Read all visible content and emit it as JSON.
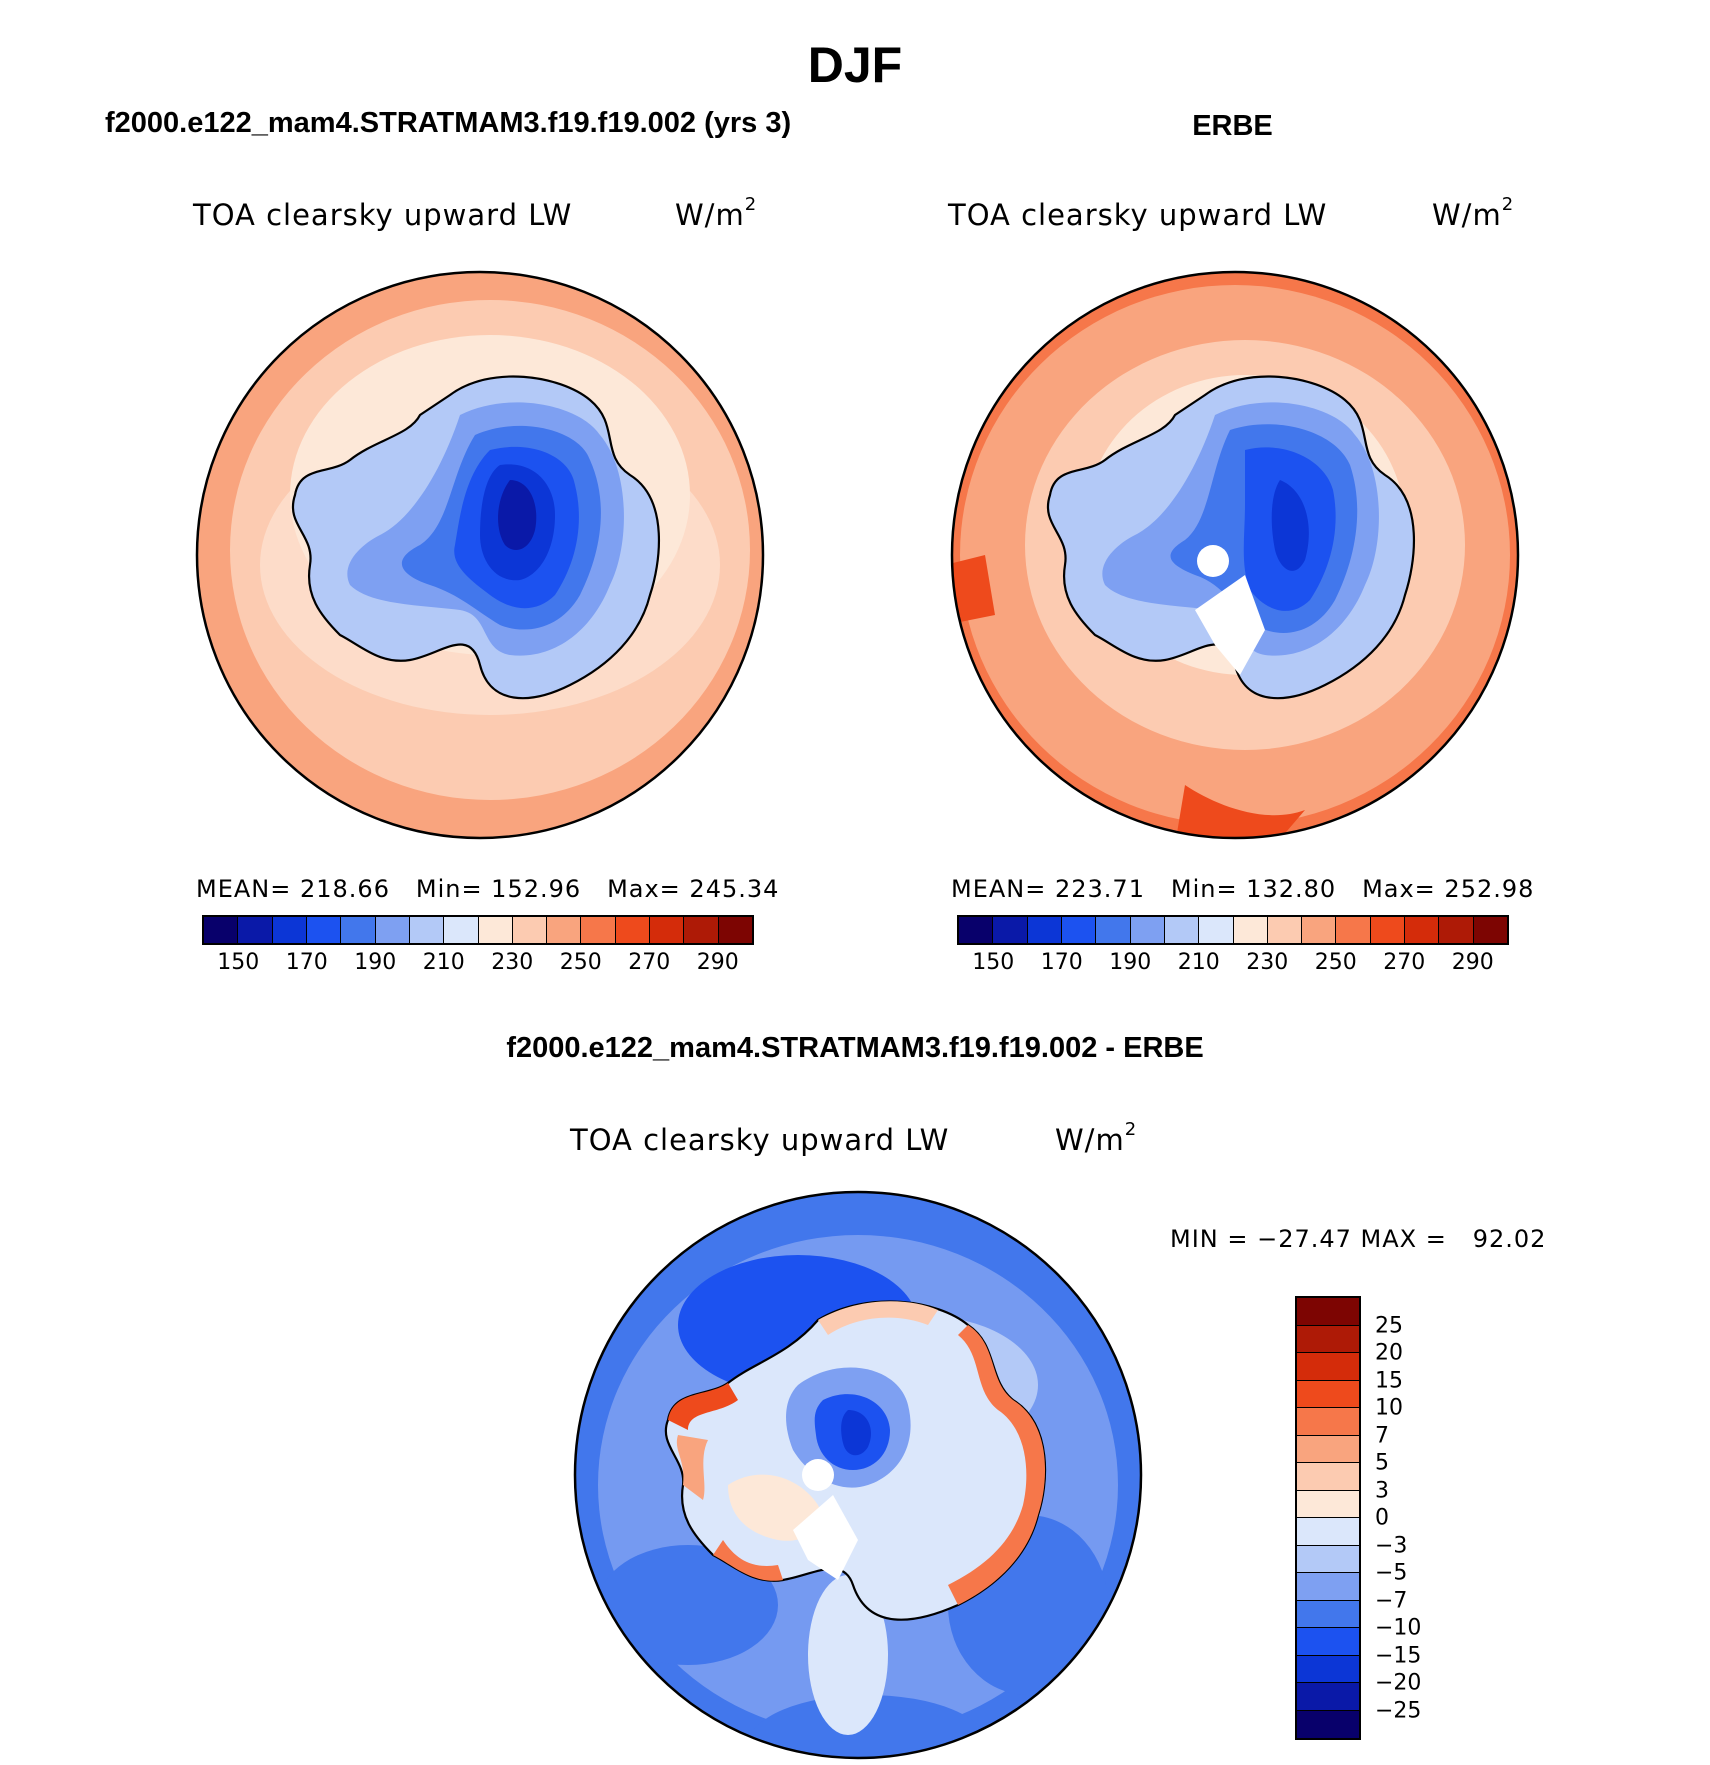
{
  "figure": {
    "season": "DJF"
  },
  "panels": [
    {
      "id": "model",
      "header": "f2000.e122_mam4.STRATMAM3.f19.f19.002 (yrs 3)",
      "variable": "TOA clearsky upward LW",
      "units_base": "W/m",
      "units_exp": "2",
      "stats": {
        "mean": "MEAN= 218.66",
        "min": "Min= 152.96",
        "max": "Max= 245.34"
      },
      "colorbar_ticks": [
        "150",
        "170",
        "190",
        "210",
        "230",
        "250",
        "270",
        "290"
      ]
    },
    {
      "id": "obs",
      "header": "ERBE",
      "variable": "TOA clearsky upward LW",
      "units_base": "W/m",
      "units_exp": "2",
      "stats": {
        "mean": "MEAN= 223.71",
        "min": "Min= 132.80",
        "max": "Max= 252.98"
      },
      "colorbar_ticks": [
        "150",
        "170",
        "190",
        "210",
        "230",
        "250",
        "270",
        "290"
      ]
    },
    {
      "id": "diff",
      "header": "f2000.e122_mam4.STRATMAM3.f19.f19.002 - ERBE",
      "variable": "TOA clearsky upward LW",
      "units_base": "W/m",
      "units_exp": "2",
      "minmax": "MIN = −27.47 MAX =   92.02",
      "colorbar_levels": [
        "25",
        "20",
        "15",
        "10",
        "7",
        "5",
        "3",
        "0",
        "−3",
        "−5",
        "−7",
        "−10",
        "−15",
        "−20",
        "−25"
      ]
    }
  ],
  "colors": {
    "abs_scale": [
      "#08006b",
      "#0a19a8",
      "#0c36d6",
      "#1c52f0",
      "#4277ec",
      "#7ea0f2",
      "#b3c9f7",
      "#dbe7fb",
      "#fde8d8",
      "#fccbb1",
      "#f9a47e",
      "#f6774a",
      "#ee4a1c",
      "#d42c0a",
      "#ae1a06",
      "#7d0502"
    ],
    "diff_scale": [
      "#7d0502",
      "#ae1a06",
      "#d42c0a",
      "#ee4a1c",
      "#f6774a",
      "#f9a47e",
      "#fccbb1",
      "#fde8d8",
      "#dbe7fb",
      "#b3c9f7",
      "#7ea0f2",
      "#4277ec",
      "#1c52f0",
      "#0c36d6",
      "#0a19a8",
      "#08006b"
    ]
  }
}
